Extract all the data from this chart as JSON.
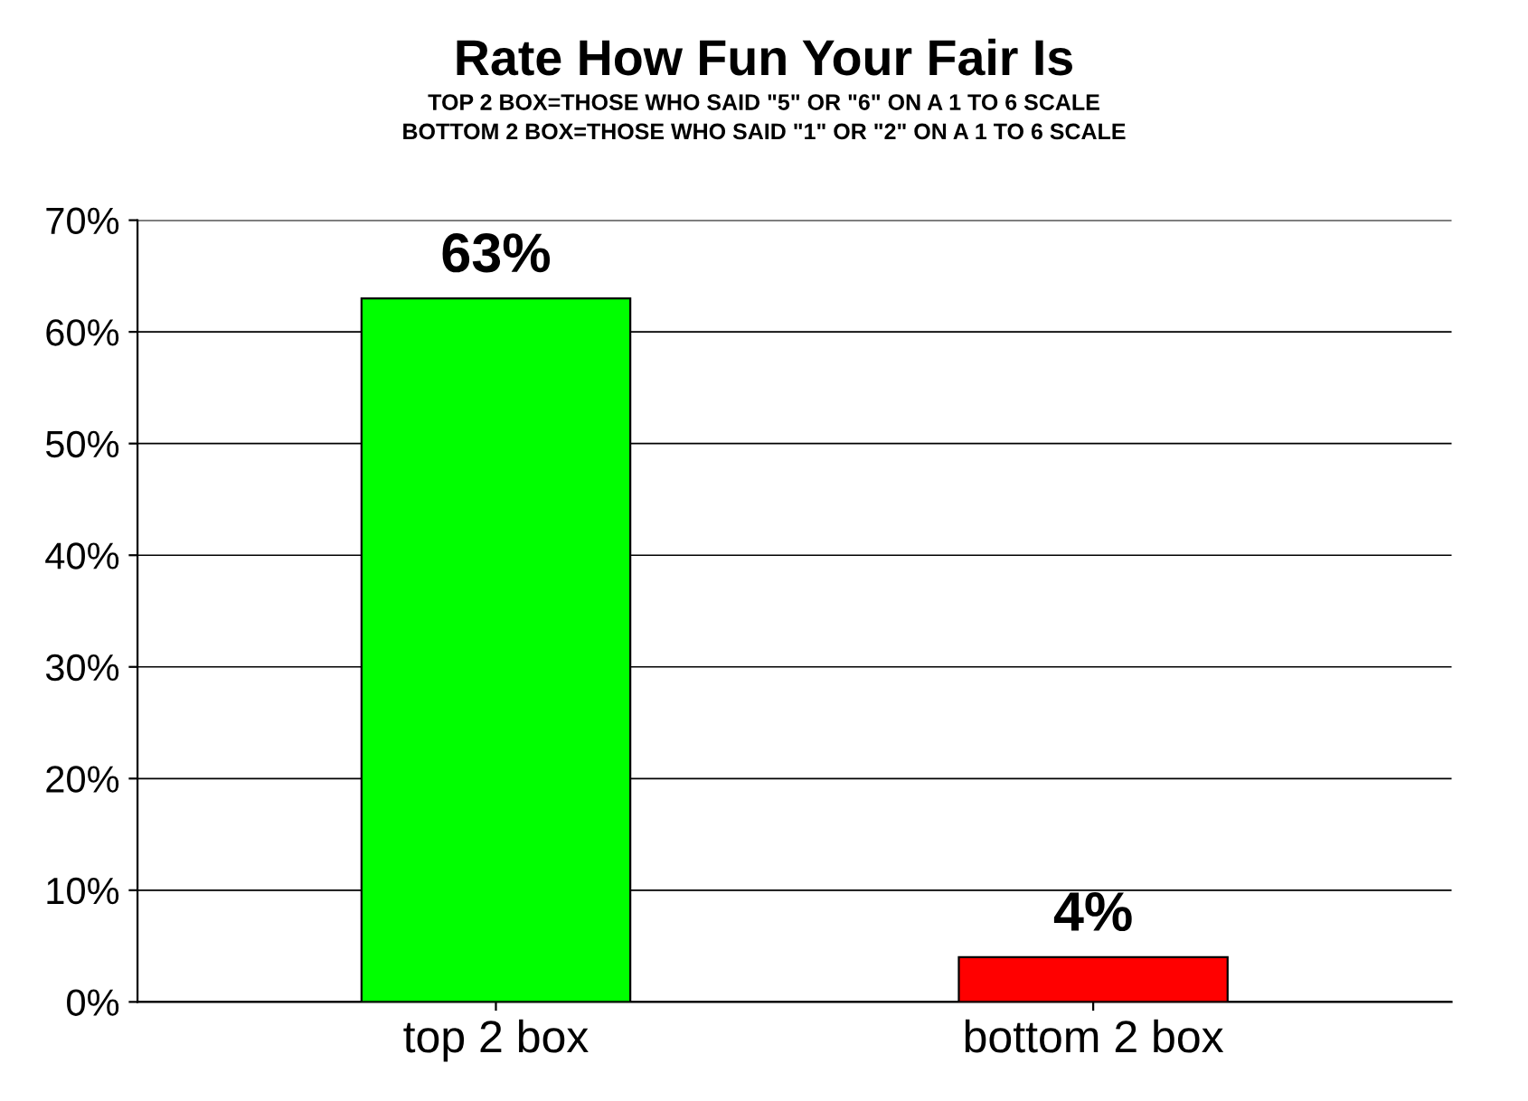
{
  "chart_data": {
    "type": "bar",
    "title": "Rate How Fun Your Fair Is",
    "subtitle": "TOP 2 BOX=THOSE WHO SAID \"5\" OR \"6\" ON A 1 TO 6 SCALE\nBOTTOM 2 BOX=THOSE WHO SAID \"1\" OR \"2\" ON A 1 TO 6 SCALE",
    "categories": [
      "top 2 box",
      "bottom 2 box"
    ],
    "values": [
      63,
      4
    ],
    "colors": [
      "#00ff00",
      "#ff0000"
    ],
    "value_labels": [
      "63%",
      "4%"
    ],
    "ylim": [
      0,
      70
    ],
    "yticks": [
      {
        "value": 0,
        "label": "0%"
      },
      {
        "value": 10,
        "label": "10%"
      },
      {
        "value": 20,
        "label": "20%"
      },
      {
        "value": 30,
        "label": "30%"
      },
      {
        "value": 40,
        "label": "40%"
      },
      {
        "value": 50,
        "label": "50%"
      },
      {
        "value": 60,
        "label": "60%"
      },
      {
        "value": 70,
        "label": "70%"
      }
    ],
    "grid": "y"
  }
}
